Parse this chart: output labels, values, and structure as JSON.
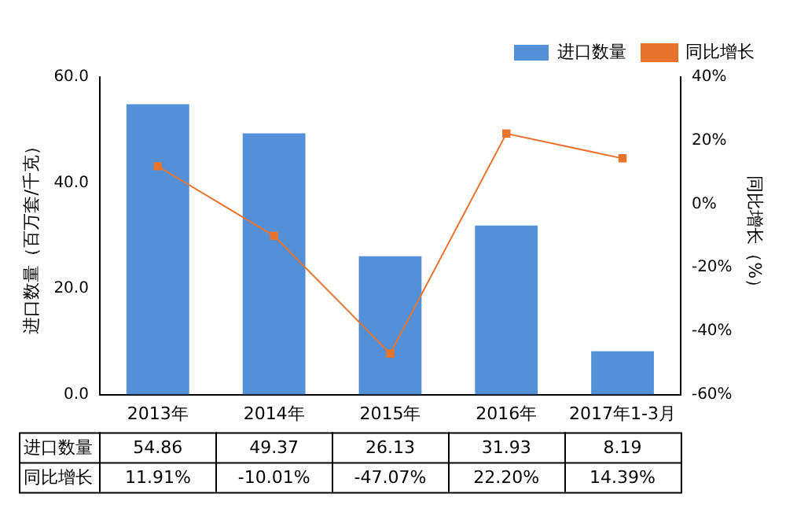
{
  "chart_data": {
    "type": "bar",
    "categories": [
      "2013年",
      "2014年",
      "2015年",
      "2016年",
      "2017年1-3月"
    ],
    "series": [
      {
        "name": "进口数量",
        "color": "#5490d8",
        "values": [
          54.86,
          49.37,
          26.13,
          31.93,
          8.19
        ],
        "value_labels": [
          "54.86",
          "49.37",
          "26.13",
          "31.93",
          "8.19"
        ]
      },
      {
        "name": "同比增长",
        "type": "line",
        "axis": "y2",
        "color": "#e8732c",
        "marker": "square",
        "values": [
          11.91,
          -10.01,
          -47.07,
          22.2,
          14.39
        ],
        "value_labels": [
          "11.91%",
          "-10.01%",
          "-47.07%",
          "22.20%",
          "14.39%"
        ]
      }
    ],
    "ylabel": "进口数量（百万套/千克）",
    "y2label": "同比增长（%）",
    "ylim": [
      0,
      60
    ],
    "yticks": [
      {
        "value": 0,
        "label": "0.0"
      },
      {
        "value": 20,
        "label": "20.0"
      },
      {
        "value": 40,
        "label": "40.0"
      },
      {
        "value": 60,
        "label": "60.0"
      }
    ],
    "y2lim": [
      -60,
      40
    ],
    "y2ticks": [
      {
        "value": -60,
        "label": "-60%"
      },
      {
        "value": -40,
        "label": "-40%"
      },
      {
        "value": -20,
        "label": "-20%"
      },
      {
        "value": 0,
        "label": "0%"
      },
      {
        "value": 20,
        "label": "20%"
      },
      {
        "value": 40,
        "label": "40%"
      }
    ],
    "grid": false,
    "legend": "top right"
  }
}
